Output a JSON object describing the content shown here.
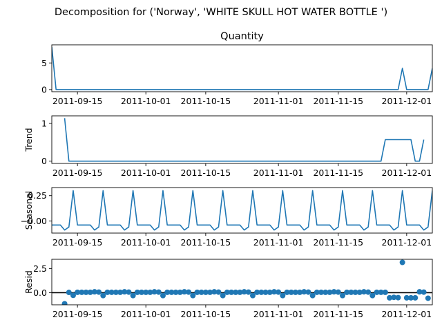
{
  "figure": {
    "suptitle": "Decomposition for ('Norway', 'WHITE SKULL HOT WATER BOTTLE ')"
  },
  "chart_data": [
    {
      "type": "line",
      "panel": "observed",
      "title": "Quantity",
      "ylabel": "",
      "x_start": "2011-09-09",
      "x_end": "2011-12-07",
      "x_tick_labels": [
        "2011-09-15",
        "2011-10-01",
        "2011-10-15",
        "2011-11-01",
        "2011-11-15",
        "2011-12-01"
      ],
      "y_ticks": [
        0,
        5
      ],
      "ylim": [
        -0.4,
        8.4
      ],
      "series": [
        {
          "color": "#1f77b4",
          "points": [
            [
              "2011-09-09",
              8
            ],
            [
              "2011-09-10",
              0
            ],
            [
              "2011-11-29",
              0
            ],
            [
              "2011-11-30",
              4
            ],
            [
              "2011-12-01",
              0
            ],
            [
              "2011-12-06",
              0
            ],
            [
              "2011-12-07",
              4
            ]
          ]
        }
      ]
    },
    {
      "type": "line",
      "panel": "trend",
      "title": "",
      "ylabel": "Trend",
      "x_start": "2011-09-09",
      "x_end": "2011-12-07",
      "x_tick_labels": [
        "2011-09-15",
        "2011-10-01",
        "2011-10-15",
        "2011-11-01",
        "2011-11-15",
        "2011-12-01"
      ],
      "y_ticks": [
        0,
        1
      ],
      "ylim": [
        -0.06,
        1.2
      ],
      "series": [
        {
          "color": "#1f77b4",
          "points": [
            [
              "2011-09-12",
              1.14
            ],
            [
              "2011-09-13",
              0
            ],
            [
              "2011-11-25",
              0
            ],
            [
              "2011-11-26",
              0.57
            ],
            [
              "2011-12-02",
              0.57
            ],
            [
              "2011-12-03",
              0
            ],
            [
              "2011-12-04",
              0
            ],
            [
              "2011-12-05",
              0.57
            ]
          ]
        }
      ]
    },
    {
      "type": "line",
      "panel": "seasonal",
      "title": "",
      "ylabel": "Seasonal",
      "x_start": "2011-09-09",
      "x_end": "2011-12-07",
      "x_tick_labels": [
        "2011-09-15",
        "2011-10-01",
        "2011-10-15",
        "2011-11-01",
        "2011-11-15",
        "2011-12-01"
      ],
      "y_ticks": [
        -0.0,
        0.25
      ],
      "y_tick_labels": [
        "−0.00",
        "0.25"
      ],
      "ylim": [
        -0.12,
        0.33
      ],
      "weekly_pattern": [
        -0.04,
        -0.04,
        -0.04,
        -0.09,
        -0.06,
        0.3,
        -0.04
      ],
      "pattern_start": "2011-09-09",
      "series": [
        {
          "color": "#1f77b4"
        }
      ]
    },
    {
      "type": "scatter",
      "panel": "resid",
      "title": "",
      "ylabel": "Resid",
      "x_start": "2011-09-09",
      "x_end": "2011-12-07",
      "x_tick_labels": [
        "2011-09-15",
        "2011-10-01",
        "2011-10-15",
        "2011-11-01",
        "2011-11-15",
        "2011-12-01"
      ],
      "y_ticks": [
        0.0,
        2.5
      ],
      "y_tick_labels": [
        "0.0",
        "2.5"
      ],
      "ylim": [
        -1.25,
        3.45
      ],
      "baseline": 0,
      "series": [
        {
          "color": "#1f77b4",
          "points": [
            [
              "2011-09-12",
              -1.14
            ],
            [
              "2011-09-13",
              0.03
            ],
            [
              "2011-09-14",
              -0.27
            ],
            [
              "2011-09-15",
              0.04
            ],
            [
              "2011-09-16",
              0.04
            ],
            [
              "2011-09-17",
              0.04
            ],
            [
              "2011-09-18",
              0.04
            ],
            [
              "2011-09-19",
              0.09
            ],
            [
              "2011-09-20",
              0.06
            ],
            [
              "2011-09-21",
              -0.3
            ],
            [
              "2011-09-22",
              0.04
            ],
            [
              "2011-09-23",
              0.04
            ],
            [
              "2011-09-24",
              0.04
            ],
            [
              "2011-09-25",
              0.04
            ],
            [
              "2011-09-26",
              0.09
            ],
            [
              "2011-09-27",
              0.06
            ],
            [
              "2011-09-28",
              -0.3
            ],
            [
              "2011-09-29",
              0.04
            ],
            [
              "2011-09-30",
              0.04
            ],
            [
              "2011-10-01",
              0.04
            ],
            [
              "2011-10-02",
              0.04
            ],
            [
              "2011-10-03",
              0.09
            ],
            [
              "2011-10-04",
              0.06
            ],
            [
              "2011-10-05",
              -0.3
            ],
            [
              "2011-10-06",
              0.04
            ],
            [
              "2011-10-07",
              0.04
            ],
            [
              "2011-10-08",
              0.04
            ],
            [
              "2011-10-09",
              0.04
            ],
            [
              "2011-10-10",
              0.09
            ],
            [
              "2011-10-11",
              0.06
            ],
            [
              "2011-10-12",
              -0.3
            ],
            [
              "2011-10-13",
              0.04
            ],
            [
              "2011-10-14",
              0.04
            ],
            [
              "2011-10-15",
              0.04
            ],
            [
              "2011-10-16",
              0.04
            ],
            [
              "2011-10-17",
              0.09
            ],
            [
              "2011-10-18",
              0.06
            ],
            [
              "2011-10-19",
              -0.3
            ],
            [
              "2011-10-20",
              0.04
            ],
            [
              "2011-10-21",
              0.04
            ],
            [
              "2011-10-22",
              0.04
            ],
            [
              "2011-10-23",
              0.04
            ],
            [
              "2011-10-24",
              0.09
            ],
            [
              "2011-10-25",
              0.06
            ],
            [
              "2011-10-26",
              -0.3
            ],
            [
              "2011-10-27",
              0.04
            ],
            [
              "2011-10-28",
              0.04
            ],
            [
              "2011-10-29",
              0.04
            ],
            [
              "2011-10-30",
              0.04
            ],
            [
              "2011-10-31",
              0.09
            ],
            [
              "2011-11-01",
              0.06
            ],
            [
              "2011-11-02",
              -0.3
            ],
            [
              "2011-11-03",
              0.04
            ],
            [
              "2011-11-04",
              0.04
            ],
            [
              "2011-11-05",
              0.04
            ],
            [
              "2011-11-06",
              0.04
            ],
            [
              "2011-11-07",
              0.09
            ],
            [
              "2011-11-08",
              0.06
            ],
            [
              "2011-11-09",
              -0.3
            ],
            [
              "2011-11-10",
              0.04
            ],
            [
              "2011-11-11",
              0.04
            ],
            [
              "2011-11-12",
              0.04
            ],
            [
              "2011-11-13",
              0.04
            ],
            [
              "2011-11-14",
              0.09
            ],
            [
              "2011-11-15",
              0.06
            ],
            [
              "2011-11-16",
              -0.3
            ],
            [
              "2011-11-17",
              0.04
            ],
            [
              "2011-11-18",
              0.04
            ],
            [
              "2011-11-19",
              0.04
            ],
            [
              "2011-11-20",
              0.04
            ],
            [
              "2011-11-21",
              0.09
            ],
            [
              "2011-11-22",
              0.06
            ],
            [
              "2011-11-23",
              -0.3
            ],
            [
              "2011-11-24",
              0.04
            ],
            [
              "2011-11-25",
              0.04
            ],
            [
              "2011-11-26",
              0.04
            ],
            [
              "2011-11-27",
              -0.53
            ],
            [
              "2011-11-28",
              -0.48
            ],
            [
              "2011-11-29",
              -0.51
            ],
            [
              "2011-11-30",
              3.13
            ],
            [
              "2011-12-01",
              -0.53
            ],
            [
              "2011-12-02",
              -0.53
            ],
            [
              "2011-12-03",
              -0.53
            ],
            [
              "2011-12-04",
              0.09
            ],
            [
              "2011-12-05",
              0.06
            ],
            [
              "2011-12-06",
              -0.57
            ]
          ]
        }
      ]
    }
  ]
}
